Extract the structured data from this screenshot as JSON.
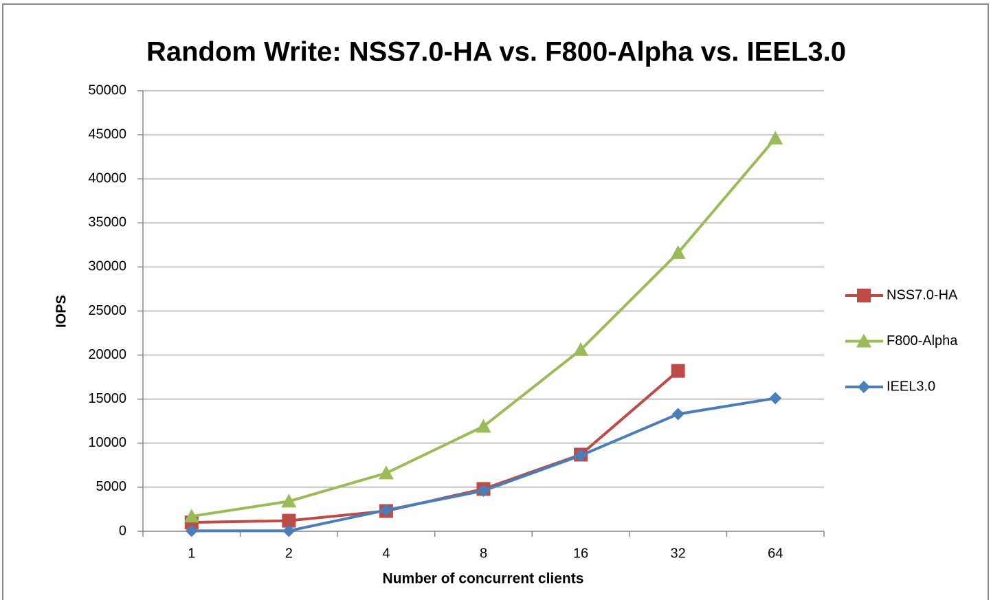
{
  "chart_data": {
    "type": "line",
    "title": "Random Write: NSS7.0-HA vs. F800-Alpha vs. IEEL3.0",
    "x_label": "Number of concurrent clients",
    "y_label": "IOPS",
    "categories": [
      "1",
      "2",
      "4",
      "8",
      "16",
      "32",
      "64"
    ],
    "series": [
      {
        "name": "NSS7.0-HA",
        "color": "#be4b48",
        "marker": "square",
        "values": [
          1000,
          1200,
          2300,
          4800,
          8700,
          18200,
          null
        ]
      },
      {
        "name": "F800-Alpha",
        "color": "#9bbb59",
        "marker": "triangle",
        "values": [
          1700,
          3400,
          6600,
          11900,
          20600,
          31600,
          44600
        ]
      },
      {
        "name": "IEEL3.0",
        "color": "#4a7ebb",
        "marker": "diamond",
        "values": [
          50,
          50,
          2400,
          4600,
          8600,
          13300,
          15100
        ]
      }
    ],
    "ylim": [
      0,
      50000
    ],
    "yticks": [
      0,
      5000,
      10000,
      15000,
      20000,
      25000,
      30000,
      35000,
      40000,
      45000,
      50000
    ],
    "grid": true,
    "legend": "right"
  }
}
